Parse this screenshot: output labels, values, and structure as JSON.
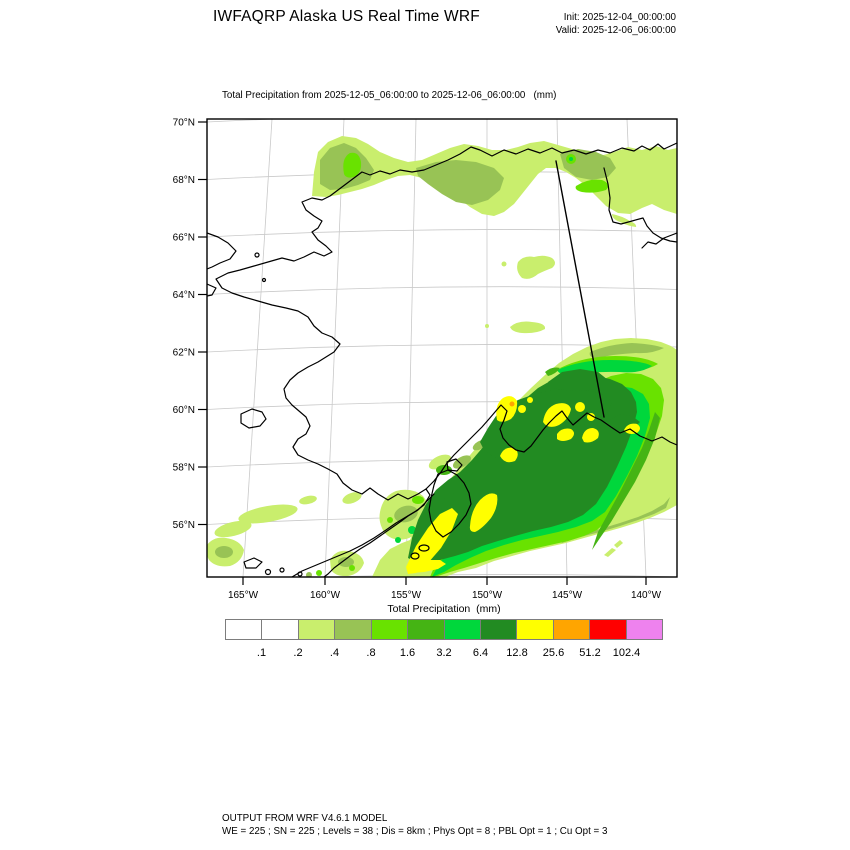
{
  "header": {
    "title": "IWFAQRP Alaska US Real Time WRF",
    "init_label": "Init: 2025-12-04_00:00:00",
    "valid_label": "Valid: 2025-12-06_06:00:00"
  },
  "map": {
    "subtitle": "Total Precipitation from 2025-12-05_06:00:00 to 2025-12-06_06:00:00   (mm)",
    "lat_labels": [
      "70°N",
      "68°N",
      "66°N",
      "64°N",
      "62°N",
      "60°N",
      "58°N",
      "56°N"
    ],
    "lon_labels": [
      "165°W",
      "160°W",
      "155°W",
      "150°W",
      "145°W",
      "140°W"
    ]
  },
  "colorbar": {
    "title": "Total Precipitation  (mm)",
    "tick_labels": [
      ".1",
      ".2",
      ".4",
      ".8",
      "1.6",
      "3.2",
      "6.4",
      "12.8",
      "25.6",
      "51.2",
      "102.4"
    ],
    "colors": [
      "#ffffff",
      "#ffffff",
      "#c9ee6d",
      "#98c355",
      "#69e200",
      "#45b414",
      "#00d73c",
      "#228b22",
      "#ffff00",
      "#ffa500",
      "#ff0000",
      "#ee82ee"
    ]
  },
  "footer": {
    "line1": "OUTPUT FROM WRF V4.6.1 MODEL",
    "line2": "WE = 225 ; SN = 225 ; Levels = 38 ; Dis = 8km ; Phys Opt = 8 ; PBL Opt = 1 ; Cu Opt = 3"
  }
}
